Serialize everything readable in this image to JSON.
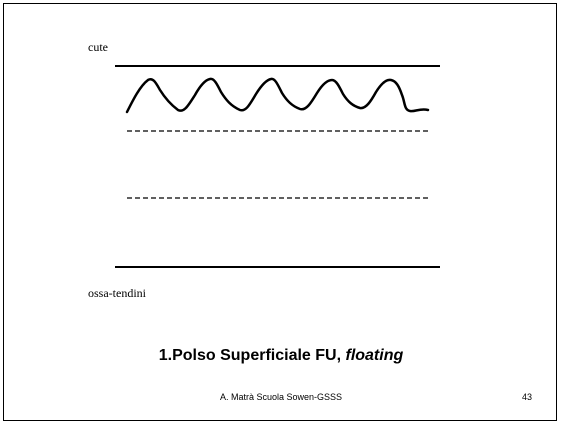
{
  "slide": {
    "labels": {
      "top": "cute",
      "bottom": "ossa-tendini"
    },
    "title": {
      "text": "1.Polso Superficiale FU,",
      "emphasis": "floating"
    },
    "footer": {
      "author": "A. Matrà Scuola Sowen-GSSS",
      "page": "43"
    }
  }
}
